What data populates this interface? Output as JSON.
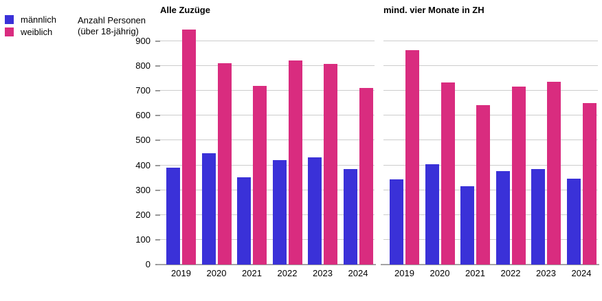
{
  "colors": {
    "maennlich": "#3a31d8",
    "weiblich": "#d92c7f",
    "gridline": "#cccccc",
    "axis_line": "#a3a3a3",
    "tick": "#999999",
    "background": "#ffffff"
  },
  "legend": {
    "items": [
      {
        "label": "männlich",
        "color": "#3a31d8"
      },
      {
        "label": "weiblich",
        "color": "#d92c7f"
      }
    ]
  },
  "y_axis_title": {
    "line1": "Anzahl Personen",
    "line2": "(über 18-jährig)"
  },
  "chart_data": [
    {
      "type": "bar",
      "title": "Alle Zuzüge",
      "categories": [
        "2019",
        "2020",
        "2021",
        "2022",
        "2023",
        "2024"
      ],
      "series": [
        {
          "name": "männlich",
          "color": "#3a31d8",
          "values": [
            390,
            448,
            353,
            422,
            431,
            385
          ]
        },
        {
          "name": "weiblich",
          "color": "#d92c7f",
          "values": [
            946,
            811,
            719,
            821,
            808,
            711
          ]
        }
      ],
      "xlabel": "",
      "ylabel": "Anzahl Personen (über 18-jährig)",
      "ylim": [
        0,
        955
      ],
      "yticks": [
        0,
        100,
        200,
        300,
        400,
        500,
        600,
        700,
        800,
        900
      ],
      "grid": true,
      "show_y_labels": true,
      "legend_position": "top-left-outside"
    },
    {
      "type": "bar",
      "title": "mind. vier Monate in ZH",
      "categories": [
        "2019",
        "2020",
        "2021",
        "2022",
        "2023",
        "2024"
      ],
      "series": [
        {
          "name": "männlich",
          "color": "#3a31d8",
          "values": [
            344,
            404,
            315,
            377,
            385,
            346
          ]
        },
        {
          "name": "weiblich",
          "color": "#d92c7f",
          "values": [
            864,
            733,
            643,
            716,
            736,
            650
          ]
        }
      ],
      "xlabel": "",
      "ylabel": "",
      "ylim": [
        0,
        955
      ],
      "yticks": [
        0,
        100,
        200,
        300,
        400,
        500,
        600,
        700,
        800,
        900
      ],
      "grid": true,
      "show_y_labels": false,
      "legend_position": "none"
    }
  ]
}
